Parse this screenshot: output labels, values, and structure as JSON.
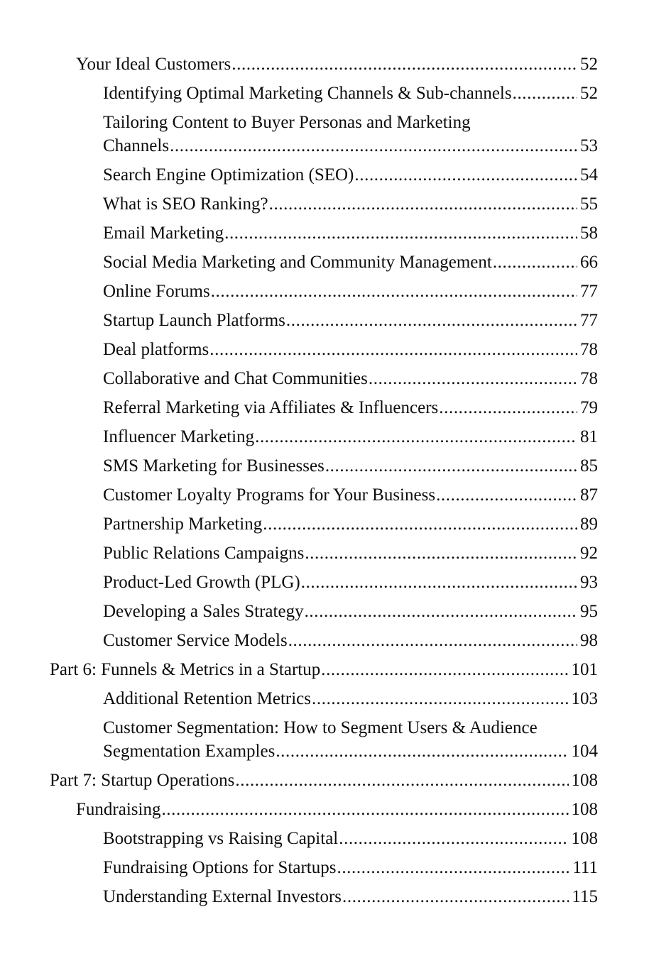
{
  "page": {
    "background": "#ffffff",
    "text_color": "#0d0d0d"
  },
  "toc": {
    "entries": [
      {
        "level": 1,
        "lines": [
          "Your Ideal Customers"
        ],
        "page": "52"
      },
      {
        "level": 2,
        "lines": [
          "Identifying Optimal Marketing Channels & Sub-channels"
        ],
        "page": "52"
      },
      {
        "level": 2,
        "lines": [
          "Tailoring Content to Buyer Personas and Marketing",
          "Channels"
        ],
        "page": "53"
      },
      {
        "level": 2,
        "lines": [
          "Search Engine Optimization (SEO)"
        ],
        "page": "54"
      },
      {
        "level": 2,
        "lines": [
          "What is SEO Ranking?"
        ],
        "page": "55"
      },
      {
        "level": 2,
        "lines": [
          "Email Marketing"
        ],
        "page": "58"
      },
      {
        "level": 2,
        "lines": [
          "Social Media Marketing and Community Management"
        ],
        "page": "66"
      },
      {
        "level": 2,
        "lines": [
          "Online Forums"
        ],
        "page": "77"
      },
      {
        "level": 2,
        "lines": [
          "Startup Launch Platforms"
        ],
        "page": "77"
      },
      {
        "level": 2,
        "lines": [
          "Deal platforms"
        ],
        "page": "78"
      },
      {
        "level": 2,
        "lines": [
          "Collaborative and Chat Communities"
        ],
        "page": "78"
      },
      {
        "level": 2,
        "lines": [
          "Referral Marketing via Affiliates & Influencers"
        ],
        "page": "79"
      },
      {
        "level": 2,
        "lines": [
          "Influencer Marketing"
        ],
        "page": "81"
      },
      {
        "level": 2,
        "lines": [
          "SMS Marketing for Businesses"
        ],
        "page": "85"
      },
      {
        "level": 2,
        "lines": [
          "Customer Loyalty Programs for Your Business"
        ],
        "page": "87"
      },
      {
        "level": 2,
        "lines": [
          "Partnership Marketing"
        ],
        "page": "89"
      },
      {
        "level": 2,
        "lines": [
          "Public Relations Campaigns"
        ],
        "page": "92"
      },
      {
        "level": 2,
        "lines": [
          "Product-Led Growth (PLG)"
        ],
        "page": "93"
      },
      {
        "level": 2,
        "lines": [
          "Developing a Sales Strategy"
        ],
        "page": "95"
      },
      {
        "level": 2,
        "lines": [
          "Customer Service Models"
        ],
        "page": "98"
      },
      {
        "level": 0,
        "lines": [
          "Part 6: Funnels & Metrics in a Startup"
        ],
        "page": "101"
      },
      {
        "level": 2,
        "lines": [
          "Additional Retention Metrics"
        ],
        "page": "103"
      },
      {
        "level": 2,
        "lines": [
          "Customer Segmentation: How to Segment Users & Audience",
          "Segmentation Examples"
        ],
        "page": "104"
      },
      {
        "level": 0,
        "lines": [
          "Part 7: Startup Operations"
        ],
        "page": "108"
      },
      {
        "level": 1,
        "lines": [
          "Fundraising"
        ],
        "page": "108"
      },
      {
        "level": 2,
        "lines": [
          "Bootstrapping vs Raising Capital"
        ],
        "page": "108"
      },
      {
        "level": 2,
        "lines": [
          "Fundraising Options for Startups"
        ],
        "page": "111"
      },
      {
        "level": 2,
        "lines": [
          "Understanding External Investors"
        ],
        "page": "115"
      }
    ]
  }
}
